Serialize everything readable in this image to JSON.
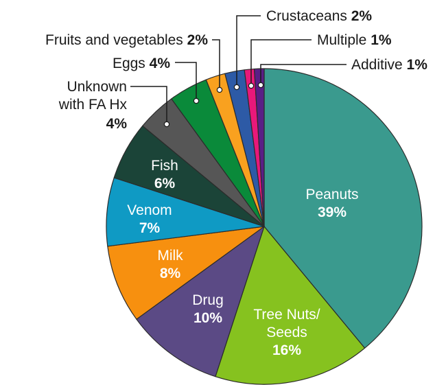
{
  "chart_data": {
    "type": "pie",
    "title": "",
    "slices": [
      {
        "label": "Peanuts",
        "value": 39,
        "color": "#3a9a8e",
        "label_parts": [
          "Peanuts"
        ],
        "pct_text": "39%"
      },
      {
        "label": "Tree Nuts/ Seeds",
        "value": 16,
        "color": "#86c21f",
        "label_parts": [
          "Tree Nuts/",
          "Seeds"
        ],
        "pct_text": "16%"
      },
      {
        "label": "Drug",
        "value": 10,
        "color": "#5b4a85",
        "label_parts": [
          "Drug"
        ],
        "pct_text": "10%"
      },
      {
        "label": "Milk",
        "value": 8,
        "color": "#f7900f",
        "label_parts": [
          "Milk"
        ],
        "pct_text": "8%"
      },
      {
        "label": "Venom",
        "value": 7,
        "color": "#0f9ac4",
        "label_parts": [
          "Venom"
        ],
        "pct_text": "7%"
      },
      {
        "label": "Fish",
        "value": 6,
        "color": "#1b4438",
        "label_parts": [
          "Fish"
        ],
        "pct_text": "6%"
      },
      {
        "label": "Unknown with FA Hx",
        "value": 4,
        "color": "#565656",
        "label_parts": [
          "Unknown",
          "with FA Hx"
        ],
        "pct_text": "4%"
      },
      {
        "label": "Eggs",
        "value": 4,
        "color": "#0a8a3a",
        "label_parts": [
          "Eggs"
        ],
        "pct_text": "4%"
      },
      {
        "label": "Fruits and vegetables",
        "value": 2,
        "color": "#f9a11f",
        "label_parts": [
          "Fruits and vegetables"
        ],
        "pct_text": "2%"
      },
      {
        "label": "Crustaceans",
        "value": 2,
        "color": "#2d5aa6",
        "label_parts": [
          "Crustaceans"
        ],
        "pct_text": "2%"
      },
      {
        "label": "Multiple",
        "value": 1,
        "color": "#e8187a",
        "label_parts": [
          "Multiple"
        ],
        "pct_text": "1%"
      },
      {
        "label": "Additive",
        "value": 1,
        "color": "#5a1e86",
        "label_parts": [
          "Additive"
        ],
        "pct_text": "1%"
      }
    ]
  }
}
